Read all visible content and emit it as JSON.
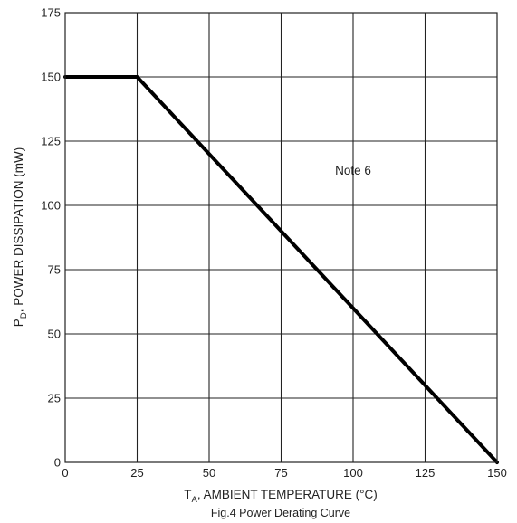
{
  "chart_data": {
    "type": "line",
    "caption": "Fig.4  Power Derating Curve",
    "xlabel": {
      "main": "T",
      "sub": "A",
      "rest": ", AMBIENT TEMPERATURE (°C)"
    },
    "ylabel": {
      "main": "P",
      "sub": "D",
      "rest": ", POWER DISSIPATION (mW)"
    },
    "xlim": [
      0,
      150
    ],
    "ylim": [
      0,
      175
    ],
    "xticks": [
      0,
      25,
      50,
      75,
      100,
      125,
      150
    ],
    "yticks": [
      0,
      25,
      50,
      75,
      100,
      125,
      150,
      175
    ],
    "grid": true,
    "series": [
      {
        "x": [
          0,
          25,
          150
        ],
        "y": [
          150,
          150,
          0
        ],
        "color": "#000000"
      }
    ],
    "annotations": [
      {
        "text": "Note 6",
        "x": 100,
        "y": 112
      }
    ]
  }
}
